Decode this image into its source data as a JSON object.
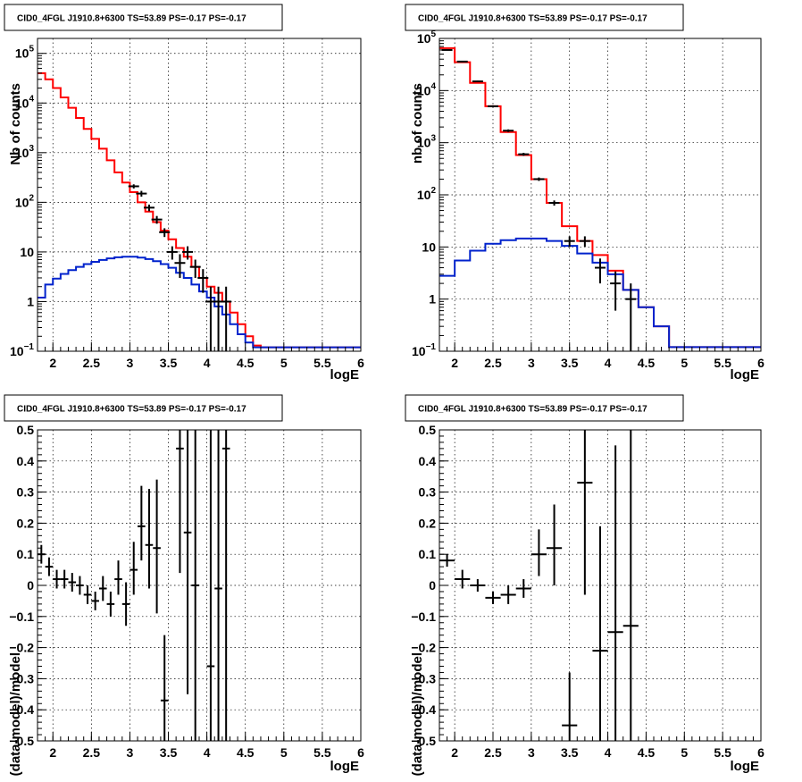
{
  "colors": {
    "data": "#000000",
    "total_model": "#ff0000",
    "source_model": "#0022cc",
    "grid": "#000000",
    "background": "#ffffff"
  },
  "chart_data": [
    {
      "id": "counts-left",
      "type": "line",
      "title": "CID0_4FGL J1910.8+6300 TS=53.89 PS=-0.17 PS=-0.17",
      "xlabel": "logE",
      "ylabel": "Nb of counts",
      "xlim": [
        1.8,
        6.0
      ],
      "ylim": [
        0.1,
        200000
      ],
      "yscale": "log",
      "grid": true,
      "xticks": [
        2,
        2.5,
        3,
        3.5,
        4,
        4.5,
        5,
        5.5,
        6
      ],
      "xtick_labels": [
        "2",
        "2.5",
        "3",
        "3.5",
        "4",
        "4.5",
        "5",
        "5.5",
        "6"
      ],
      "yticks": [
        {
          "v": 0.1,
          "label": "10",
          "exp": "−1"
        },
        {
          "v": 1,
          "label": "1",
          "exp": ""
        },
        {
          "v": 10,
          "label": "10",
          "exp": ""
        },
        {
          "v": 100,
          "label": "10",
          "exp": "2"
        },
        {
          "v": 1000,
          "label": "10",
          "exp": "3"
        },
        {
          "v": 10000,
          "label": "10",
          "exp": "4"
        },
        {
          "v": 100000,
          "label": "10",
          "exp": "5"
        }
      ],
      "bin_edges": [
        1.8,
        1.9,
        2.0,
        2.1,
        2.2,
        2.3,
        2.4,
        2.5,
        2.6,
        2.7,
        2.8,
        2.9,
        3.0,
        3.1,
        3.2,
        3.3,
        3.4,
        3.5,
        3.6,
        3.7,
        3.8,
        3.9,
        4.0,
        4.1,
        4.2,
        4.3,
        4.4,
        4.5,
        4.6,
        4.7,
        4.8,
        4.9,
        5.0,
        5.1,
        5.2,
        5.3,
        5.4,
        5.5,
        5.6,
        5.7,
        5.8,
        5.9,
        6.0
      ],
      "series": [
        {
          "name": "",
          "role": "total_model",
          "values": [
            40000,
            30000,
            20000,
            13000,
            8000,
            5000,
            3000,
            1900,
            1200,
            700,
            400,
            250,
            160,
            100,
            65,
            40,
            27,
            18,
            12,
            8,
            5,
            3,
            2,
            1.5,
            1,
            0.6,
            0.35,
            0.2,
            0.13,
            0.12,
            0.12,
            0.12,
            0.12,
            0.12,
            0.12,
            0.12,
            0.12,
            0.12,
            0.12,
            0.12,
            0.12,
            0.12
          ]
        },
        {
          "name": "",
          "role": "source_model",
          "values": [
            1.2,
            2.2,
            2.9,
            3.6,
            4.3,
            5.0,
            5.7,
            6.3,
            6.9,
            7.4,
            7.8,
            8.0,
            8.0,
            7.7,
            7.2,
            6.5,
            5.7,
            4.8,
            3.8,
            3.0,
            2.2,
            1.6,
            1.2,
            0.8,
            0.55,
            0.35,
            0.22,
            0.15,
            0.12,
            0.12,
            0.12,
            0.12,
            0.12,
            0.12,
            0.12,
            0.12,
            0.12,
            0.12,
            0.12,
            0.12,
            0.12,
            0.12
          ]
        }
      ],
      "points": [
        {
          "x": 3.05,
          "y": 210,
          "lo": 190,
          "hi": 230
        },
        {
          "x": 3.15,
          "y": 150,
          "lo": 130,
          "hi": 170
        },
        {
          "x": 3.25,
          "y": 78,
          "lo": 66,
          "hi": 90
        },
        {
          "x": 3.35,
          "y": 45,
          "lo": 37,
          "hi": 53
        },
        {
          "x": 3.45,
          "y": 25,
          "lo": 20,
          "hi": 30
        },
        {
          "x": 3.55,
          "y": 10,
          "lo": 7,
          "hi": 13
        },
        {
          "x": 3.65,
          "y": 6,
          "lo": 3,
          "hi": 9
        },
        {
          "x": 3.75,
          "y": 10,
          "lo": 7,
          "hi": 13
        },
        {
          "x": 3.85,
          "y": 5,
          "lo": 3,
          "hi": 7
        },
        {
          "x": 3.95,
          "y": 3,
          "lo": 1.5,
          "hi": 4.5
        },
        {
          "x": 4.05,
          "y": 1,
          "lo": 0.1,
          "hi": 2
        },
        {
          "x": 4.15,
          "y": 1,
          "lo": 0.1,
          "hi": 2
        },
        {
          "x": 4.25,
          "y": 1,
          "lo": 0.1,
          "hi": 2
        }
      ]
    },
    {
      "id": "counts-right",
      "type": "line",
      "title": "CID0_4FGL J1910.8+6300 TS=53.89 PS=-0.17 PS=-0.17",
      "xlabel": "logE",
      "ylabel": "nb of counts",
      "xlim": [
        1.8,
        6.0
      ],
      "ylim": [
        0.1,
        100000
      ],
      "yscale": "log",
      "grid": true,
      "xticks": [
        2,
        2.5,
        3,
        3.5,
        4,
        4.5,
        5,
        5.5,
        6
      ],
      "xtick_labels": [
        "2",
        "2.5",
        "3",
        "3.5",
        "4",
        "4.5",
        "5",
        "5.5",
        "6"
      ],
      "yticks": [
        {
          "v": 0.1,
          "label": "10",
          "exp": "−1"
        },
        {
          "v": 1,
          "label": "1",
          "exp": ""
        },
        {
          "v": 10,
          "label": "10",
          "exp": ""
        },
        {
          "v": 100,
          "label": "10",
          "exp": "2"
        },
        {
          "v": 1000,
          "label": "10",
          "exp": "3"
        },
        {
          "v": 10000,
          "label": "10",
          "exp": "4"
        },
        {
          "v": 100000,
          "label": "10",
          "exp": "5"
        }
      ],
      "bin_edges": [
        1.8,
        2.0,
        2.2,
        2.4,
        2.6,
        2.8,
        3.0,
        3.2,
        3.4,
        3.6,
        3.8,
        4.0,
        4.2,
        4.4,
        4.6,
        4.8,
        5.0,
        5.2,
        5.4,
        5.6,
        5.8,
        6.0
      ],
      "series": [
        {
          "name": "",
          "role": "total_model",
          "values": [
            65000,
            35000,
            14000,
            5000,
            1600,
            580,
            200,
            70,
            25,
            13,
            7,
            3.5,
            1.5,
            0.7,
            0.3,
            0.12,
            0.12,
            0.12,
            0.12,
            0.12,
            0.12
          ]
        },
        {
          "name": "",
          "role": "source_model",
          "values": [
            2.8,
            5.5,
            8.5,
            11.5,
            13.5,
            14.5,
            14.5,
            13,
            10.5,
            7.5,
            5,
            3,
            1.5,
            0.7,
            0.3,
            0.12,
            0.12,
            0.12,
            0.12,
            0.12,
            0.12
          ]
        }
      ],
      "points": [
        {
          "x": 1.9,
          "y": 60000,
          "lo": 59000,
          "hi": 61000
        },
        {
          "x": 2.1,
          "y": 36000,
          "lo": 35000,
          "hi": 37000
        },
        {
          "x": 2.3,
          "y": 15000,
          "lo": 14500,
          "hi": 15500
        },
        {
          "x": 2.5,
          "y": 5000,
          "lo": 4800,
          "hi": 5200
        },
        {
          "x": 2.7,
          "y": 1700,
          "lo": 1600,
          "hi": 1800
        },
        {
          "x": 2.9,
          "y": 600,
          "lo": 560,
          "hi": 640
        },
        {
          "x": 3.1,
          "y": 200,
          "lo": 185,
          "hi": 215
        },
        {
          "x": 3.3,
          "y": 70,
          "lo": 62,
          "hi": 78
        },
        {
          "x": 3.5,
          "y": 13,
          "lo": 10,
          "hi": 16
        },
        {
          "x": 3.7,
          "y": 13,
          "lo": 10,
          "hi": 16
        },
        {
          "x": 3.9,
          "y": 4,
          "lo": 2,
          "hi": 6
        },
        {
          "x": 4.1,
          "y": 2,
          "lo": 0.6,
          "hi": 3.4
        },
        {
          "x": 4.3,
          "y": 1,
          "lo": 0.1,
          "hi": 2
        }
      ]
    },
    {
      "id": "residual-left",
      "type": "scatter",
      "title": "CID0_4FGL J1910.8+6300 TS=53.89 PS=-0.17 PS=-0.17",
      "xlabel": "logE",
      "ylabel": "(data-model)/model",
      "xlim": [
        1.8,
        6.0
      ],
      "ylim": [
        -0.5,
        0.5
      ],
      "yscale": "linear",
      "grid": true,
      "xticks": [
        2,
        2.5,
        3,
        3.5,
        4,
        4.5,
        5,
        5.5,
        6
      ],
      "xtick_labels": [
        "2",
        "2.5",
        "3",
        "3.5",
        "4",
        "4.5",
        "5",
        "5.5",
        "6"
      ],
      "yticks": [
        {
          "v": -0.5,
          "label": "−0.5",
          "exp": ""
        },
        {
          "v": -0.4,
          "label": "−0.4",
          "exp": ""
        },
        {
          "v": -0.3,
          "label": "−0.3",
          "exp": ""
        },
        {
          "v": -0.2,
          "label": "−0.2",
          "exp": ""
        },
        {
          "v": -0.1,
          "label": "−0.1",
          "exp": ""
        },
        {
          "v": 0,
          "label": "0",
          "exp": ""
        },
        {
          "v": 0.1,
          "label": "0.1",
          "exp": ""
        },
        {
          "v": 0.2,
          "label": "0.2",
          "exp": ""
        },
        {
          "v": 0.3,
          "label": "0.3",
          "exp": ""
        },
        {
          "v": 0.4,
          "label": "0.4",
          "exp": ""
        },
        {
          "v": 0.5,
          "label": "0.5",
          "exp": ""
        }
      ],
      "points": [
        {
          "x": 1.85,
          "y": 0.1,
          "xerr": 0.05,
          "lo": 0.07,
          "hi": 0.13
        },
        {
          "x": 1.95,
          "y": 0.06,
          "xerr": 0.05,
          "lo": 0.03,
          "hi": 0.09
        },
        {
          "x": 2.05,
          "y": 0.02,
          "xerr": 0.05,
          "lo": -0.01,
          "hi": 0.05
        },
        {
          "x": 2.15,
          "y": 0.02,
          "xerr": 0.05,
          "lo": -0.01,
          "hi": 0.05
        },
        {
          "x": 2.25,
          "y": 0.01,
          "xerr": 0.05,
          "lo": -0.02,
          "hi": 0.04
        },
        {
          "x": 2.35,
          "y": 0.0,
          "xerr": 0.05,
          "lo": -0.03,
          "hi": 0.03
        },
        {
          "x": 2.45,
          "y": -0.03,
          "xerr": 0.05,
          "lo": -0.06,
          "hi": 0.0
        },
        {
          "x": 2.55,
          "y": -0.05,
          "xerr": 0.05,
          "lo": -0.08,
          "hi": -0.02
        },
        {
          "x": 2.65,
          "y": -0.01,
          "xerr": 0.05,
          "lo": -0.05,
          "hi": 0.03
        },
        {
          "x": 2.75,
          "y": -0.06,
          "xerr": 0.05,
          "lo": -0.1,
          "hi": -0.02
        },
        {
          "x": 2.85,
          "y": 0.02,
          "xerr": 0.05,
          "lo": -0.03,
          "hi": 0.08
        },
        {
          "x": 2.95,
          "y": -0.06,
          "xerr": 0.05,
          "lo": -0.13,
          "hi": 0.01
        },
        {
          "x": 3.05,
          "y": 0.05,
          "xerr": 0.05,
          "lo": -0.03,
          "hi": 0.14
        },
        {
          "x": 3.15,
          "y": 0.19,
          "xerr": 0.05,
          "lo": 0.08,
          "hi": 0.32
        },
        {
          "x": 3.25,
          "y": 0.13,
          "xerr": 0.05,
          "lo": -0.01,
          "hi": 0.31
        },
        {
          "x": 3.35,
          "y": 0.12,
          "xerr": 0.05,
          "lo": -0.09,
          "hi": 0.34
        },
        {
          "x": 3.45,
          "y": -0.37,
          "xerr": 0.05,
          "lo": -0.5,
          "hi": -0.16
        },
        {
          "x": 3.65,
          "y": 0.44,
          "xerr": 0.05,
          "lo": 0.04,
          "hi": 0.5
        },
        {
          "x": 3.75,
          "y": 0.17,
          "xerr": 0.05,
          "lo": -0.35,
          "hi": 0.5
        },
        {
          "x": 3.85,
          "y": 0.0,
          "xerr": 0.05,
          "lo": -0.5,
          "hi": 0.5
        },
        {
          "x": 4.05,
          "y": -0.26,
          "xerr": 0.05,
          "lo": -0.5,
          "hi": 0.5
        },
        {
          "x": 4.15,
          "y": -0.01,
          "xerr": 0.05,
          "lo": -0.5,
          "hi": 0.5
        },
        {
          "x": 4.25,
          "y": 0.44,
          "xerr": 0.05,
          "lo": -0.5,
          "hi": 0.5
        }
      ]
    },
    {
      "id": "residual-right",
      "type": "scatter",
      "title": "CID0_4FGL J1910.8+6300 TS=53.89 PS=-0.17 PS=-0.17",
      "xlabel": "logE",
      "ylabel": "(data-model)/model",
      "xlim": [
        1.8,
        6.0
      ],
      "ylim": [
        -0.5,
        0.5
      ],
      "yscale": "linear",
      "grid": true,
      "xticks": [
        2,
        2.5,
        3,
        3.5,
        4,
        4.5,
        5,
        5.5,
        6
      ],
      "xtick_labels": [
        "2",
        "2.5",
        "3",
        "3.5",
        "4",
        "4.5",
        "5",
        "5.5",
        "6"
      ],
      "yticks": [
        {
          "v": -0.5,
          "label": "−0.5",
          "exp": ""
        },
        {
          "v": -0.4,
          "label": "−0.4",
          "exp": ""
        },
        {
          "v": -0.3,
          "label": "−0.3",
          "exp": ""
        },
        {
          "v": -0.2,
          "label": "−0.2",
          "exp": ""
        },
        {
          "v": -0.1,
          "label": "−0.1",
          "exp": ""
        },
        {
          "v": 0,
          "label": "0",
          "exp": ""
        },
        {
          "v": 0.1,
          "label": "0.1",
          "exp": ""
        },
        {
          "v": 0.2,
          "label": "0.2",
          "exp": ""
        },
        {
          "v": 0.3,
          "label": "0.3",
          "exp": ""
        },
        {
          "v": 0.4,
          "label": "0.4",
          "exp": ""
        },
        {
          "v": 0.5,
          "label": "0.5",
          "exp": ""
        }
      ],
      "points": [
        {
          "x": 1.9,
          "y": 0.08,
          "xerr": 0.1,
          "lo": 0.06,
          "hi": 0.1
        },
        {
          "x": 2.1,
          "y": 0.02,
          "xerr": 0.1,
          "lo": -0.01,
          "hi": 0.05
        },
        {
          "x": 2.3,
          "y": 0.0,
          "xerr": 0.1,
          "lo": -0.02,
          "hi": 0.02
        },
        {
          "x": 2.5,
          "y": -0.04,
          "xerr": 0.1,
          "lo": -0.06,
          "hi": -0.02
        },
        {
          "x": 2.7,
          "y": -0.03,
          "xerr": 0.1,
          "lo": -0.06,
          "hi": 0.0
        },
        {
          "x": 2.9,
          "y": -0.01,
          "xerr": 0.1,
          "lo": -0.04,
          "hi": 0.02
        },
        {
          "x": 3.1,
          "y": 0.1,
          "xerr": 0.1,
          "lo": 0.03,
          "hi": 0.18
        },
        {
          "x": 3.3,
          "y": 0.12,
          "xerr": 0.1,
          "lo": 0.0,
          "hi": 0.26
        },
        {
          "x": 3.5,
          "y": -0.45,
          "xerr": 0.1,
          "lo": -0.5,
          "hi": -0.28
        },
        {
          "x": 3.7,
          "y": 0.33,
          "xerr": 0.1,
          "lo": -0.03,
          "hi": 0.5
        },
        {
          "x": 3.9,
          "y": -0.21,
          "xerr": 0.1,
          "lo": -0.5,
          "hi": 0.19
        },
        {
          "x": 4.1,
          "y": -0.15,
          "xerr": 0.1,
          "lo": -0.5,
          "hi": 0.45
        },
        {
          "x": 4.3,
          "y": -0.13,
          "xerr": 0.1,
          "lo": -0.5,
          "hi": 0.5
        }
      ]
    }
  ]
}
